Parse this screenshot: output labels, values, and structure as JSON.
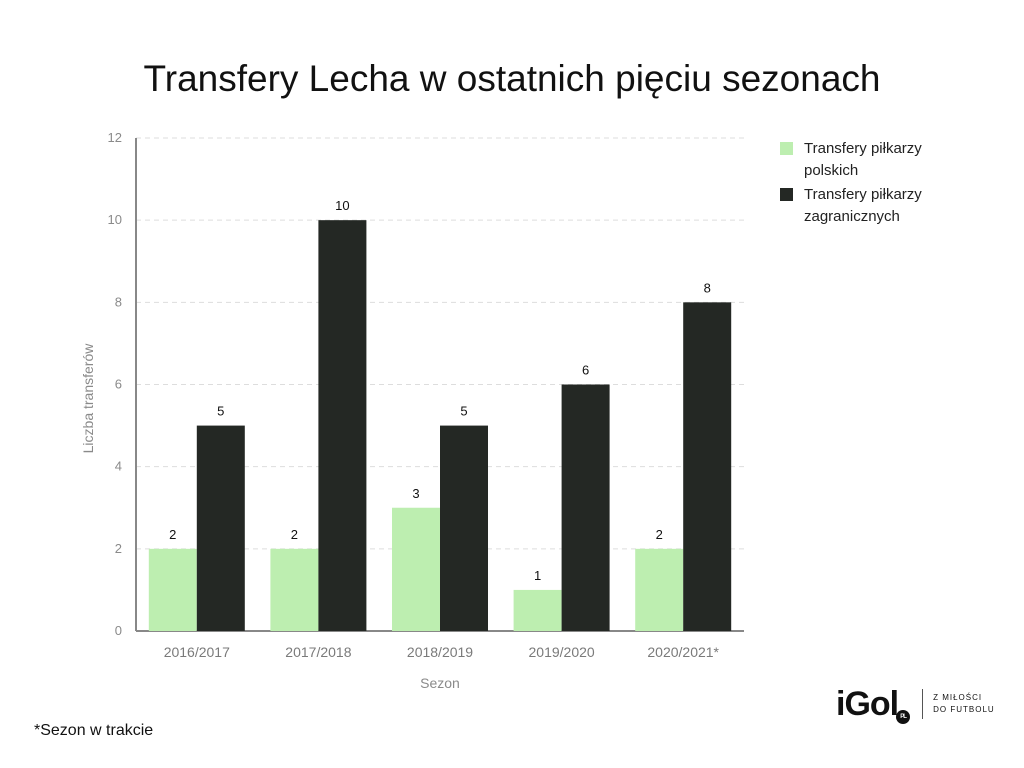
{
  "chart_data": {
    "type": "bar",
    "title": "Transfery Lecha w ostatnich pięciu sezonach",
    "xlabel": "Sezon",
    "ylabel": "Liczba transferów",
    "categories": [
      "2016/2017",
      "2017/2018",
      "2018/2019",
      "2019/2020",
      "2020/2021*"
    ],
    "series": [
      {
        "name": "Transfery piłkarzy polskich",
        "values": [
          2,
          2,
          3,
          1,
          2
        ],
        "color": "#bdeeb0"
      },
      {
        "name": "Transfery piłkarzy zagranicznych",
        "values": [
          5,
          10,
          5,
          6,
          8
        ],
        "color": "#242824"
      }
    ],
    "ylim": [
      0,
      12
    ],
    "yticks": [
      0,
      2,
      4,
      6,
      8,
      10,
      12
    ],
    "grid": true,
    "legend_position": "top-right"
  },
  "footnote": "*Sezon w trakcie",
  "logo": {
    "word": "iGol",
    "badge": "PL",
    "tagline_line1": "Z MIŁOŚCI",
    "tagline_line2": "DO FUTBOLU"
  }
}
